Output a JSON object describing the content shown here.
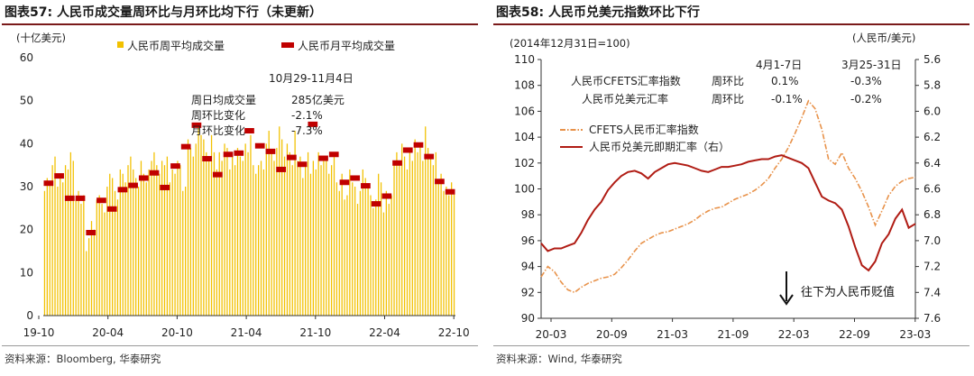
{
  "charts": [
    {
      "title": "图表57:  人民币成交量周环比与月环比均下行（未更新）",
      "unit": "(十亿美元)",
      "legend": [
        "人民币周平均成交量",
        "人民币月平均成交量"
      ],
      "annotation": {
        "header": "10月29-11月4日",
        "rows": [
          {
            "label": "周日均成交量",
            "value": "285亿美元"
          },
          {
            "label": "周环比变化",
            "value": "-2.1%"
          },
          {
            "label": "月环比变化",
            "value": "-7.3%"
          }
        ]
      },
      "source": "资料来源：Bloomberg, 华泰研究"
    },
    {
      "title": "图表58:  人民币兑美元指数环比下行",
      "note": "(2014年12月31日=100)",
      "unit_right": "(人民币/美元)",
      "table": {
        "headers": [
          "4月1-7日",
          "3月25-31日"
        ],
        "rows": [
          {
            "label": "人民币CFETS汇率指数",
            "metric": "周环比",
            "v1": "0.1%",
            "v2": "-0.3%"
          },
          {
            "label": "人民币兑美元汇率",
            "metric": "周环比",
            "v1": "-0.1%",
            "v2": "-0.2%"
          }
        ]
      },
      "legend": [
        "CFETS人民币汇率指数",
        "人民币兑美元即期汇率（右）"
      ],
      "arrow_label": "往下为人民币贬值",
      "source": "资料来源：Wind, 华泰研究"
    }
  ],
  "chart_data": [
    {
      "type": "bar",
      "x_ticks": [
        "19-10",
        "20-04",
        "20-10",
        "21-04",
        "21-10",
        "22-04",
        "22-10"
      ],
      "ylim": [
        0,
        60
      ],
      "y_ticks": [
        0,
        10,
        20,
        30,
        40,
        50,
        60
      ],
      "weekly_colour": "#f2c100",
      "monthly_colour": "#c00000",
      "series": [
        {
          "name": "人民币周平均成交量",
          "values": [
            29,
            32,
            31,
            35,
            37,
            30,
            33,
            31,
            35,
            34,
            38,
            36,
            27,
            29,
            26,
            28,
            15,
            18,
            22,
            20,
            27,
            28,
            26,
            24,
            30,
            33,
            32,
            29,
            27,
            34,
            33,
            31,
            35,
            37,
            34,
            32,
            30,
            36,
            33,
            31,
            34,
            36,
            38,
            35,
            33,
            36,
            35,
            37,
            31,
            34,
            33,
            36,
            35,
            29,
            30,
            41,
            39,
            37,
            40,
            44,
            42,
            41,
            38,
            36,
            42,
            38,
            34,
            38,
            36,
            40,
            39,
            34,
            37,
            35,
            39,
            37,
            36,
            40,
            38,
            42,
            35,
            33,
            35,
            36,
            34,
            40,
            43,
            38,
            36,
            39,
            44,
            41,
            37,
            40,
            38,
            35,
            43,
            36,
            37,
            32,
            35,
            38,
            33,
            36,
            34,
            38,
            35,
            36,
            37,
            33,
            35,
            38,
            31,
            29,
            33,
            27,
            28,
            34,
            31,
            30,
            26,
            29,
            34,
            32,
            30,
            28,
            25,
            27,
            33,
            31,
            24,
            29,
            26,
            28,
            35,
            38,
            36,
            40,
            37,
            34,
            39,
            36,
            41,
            38,
            40,
            36,
            44,
            39,
            37,
            35,
            38,
            31,
            33,
            29,
            30,
            28,
            31,
            29
          ]
        },
        {
          "name": "人民币月平均成交量",
          "values": [
            30.8,
            32.5,
            27.3,
            27.3,
            19.3,
            26.8,
            24.8,
            29.3,
            30.3,
            32.0,
            33.2,
            29.8,
            34.8,
            39.3,
            44.3,
            36.5,
            32.8,
            37.5,
            37.8,
            43.0,
            39.5,
            38.2,
            34.0,
            36.8,
            35.2,
            44.5,
            36.6,
            37.5,
            31.0,
            32.0,
            30.2,
            26.0,
            27.8,
            35.5,
            38.5,
            39.7,
            37.0,
            31.2,
            28.8
          ]
        }
      ]
    },
    {
      "type": "line",
      "x_ticks": [
        "20-03",
        "20-09",
        "21-03",
        "21-09",
        "22-03",
        "22-09",
        "23-03"
      ],
      "ylim_left": [
        90,
        110
      ],
      "y_ticks_left": [
        90,
        92,
        94,
        96,
        98,
        100,
        102,
        104,
        106,
        108,
        110
      ],
      "ylim_right": [
        7.6,
        5.6
      ],
      "y_ticks_right": [
        "5.6",
        "5.8",
        "6.0",
        "6.2",
        "6.4",
        "6.6",
        "6.8",
        "7.0",
        "7.2",
        "7.4",
        "7.6"
      ],
      "series": [
        {
          "name": "CFETS人民币汇率指数",
          "axis": "left",
          "colour": "#e8924a",
          "style": "dashdot",
          "values": [
            93.2,
            94.0,
            93.6,
            92.8,
            92.2,
            92.0,
            92.4,
            92.7,
            92.9,
            93.1,
            93.2,
            93.4,
            93.9,
            94.5,
            95.2,
            95.8,
            96.1,
            96.4,
            96.6,
            96.7,
            96.9,
            97.1,
            97.3,
            97.6,
            98.0,
            98.3,
            98.5,
            98.6,
            98.9,
            99.2,
            99.4,
            99.6,
            99.9,
            100.3,
            100.8,
            101.6,
            102.3,
            103.2,
            104.3,
            105.5,
            106.8,
            106.2,
            104.6,
            102.3,
            101.9,
            102.8,
            101.6,
            100.8,
            99.8,
            98.6,
            97.2,
            98.3,
            99.5,
            100.2,
            100.6,
            100.8,
            100.9
          ]
        },
        {
          "name": "人民币兑美元即期汇率（右）",
          "axis": "right",
          "colour": "#b01c14",
          "style": "solid",
          "values": [
            7.02,
            7.08,
            7.06,
            7.06,
            7.04,
            7.02,
            6.94,
            6.84,
            6.76,
            6.7,
            6.61,
            6.55,
            6.5,
            6.47,
            6.46,
            6.48,
            6.52,
            6.47,
            6.44,
            6.41,
            6.4,
            6.41,
            6.42,
            6.44,
            6.46,
            6.47,
            6.45,
            6.43,
            6.43,
            6.42,
            6.41,
            6.39,
            6.38,
            6.37,
            6.37,
            6.35,
            6.34,
            6.36,
            6.38,
            6.4,
            6.44,
            6.55,
            6.66,
            6.69,
            6.71,
            6.76,
            6.89,
            7.05,
            7.19,
            7.23,
            7.16,
            7.02,
            6.95,
            6.83,
            6.76,
            6.9,
            6.87
          ]
        }
      ]
    }
  ]
}
